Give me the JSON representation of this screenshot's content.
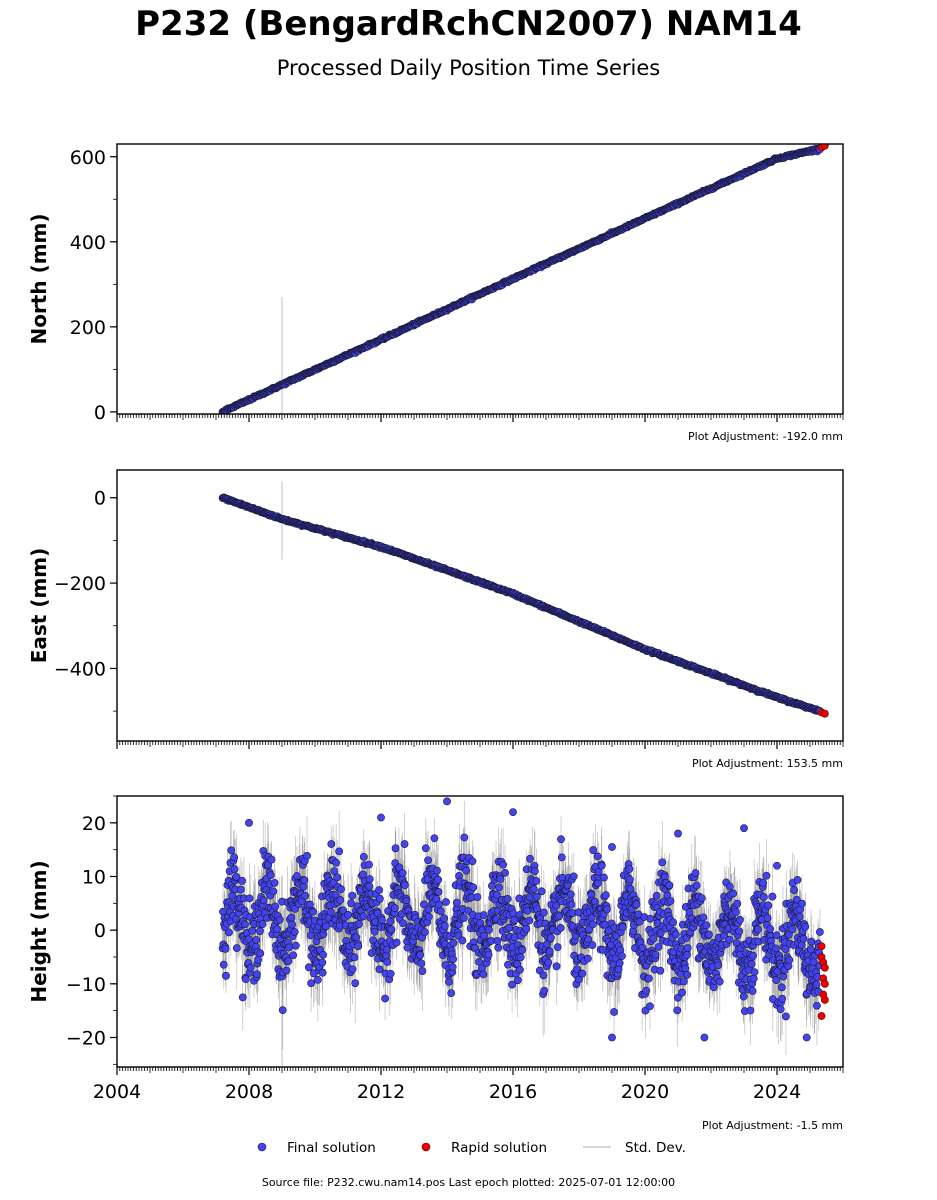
{
  "title": "P232 (BengardRchCN2007) NAM14",
  "subtitle": "Processed Daily Position Time Series",
  "source_text": "Source file: P232.cwu.nam14.pos  Last epoch plotted: 2025-07-01 12:00:00",
  "legend": [
    {
      "label": "Final solution",
      "color": "#4444ee"
    },
    {
      "label": "Rapid solution",
      "color": "#ee0000"
    },
    {
      "label": "Std. Dev.",
      "color": "#cccccc"
    }
  ],
  "colors": {
    "final": "#4444ee",
    "rapid": "#ee0000",
    "stddev": "#cccccc",
    "edge": "#1a1a3a"
  },
  "chart_data": [
    {
      "type": "scatter",
      "ylabel": "North (mm)",
      "adjustment": "Plot Adjustment: -192.0 mm",
      "xlim": [
        2004,
        2026
      ],
      "ylim": [
        -5,
        630
      ],
      "yticks": [
        0,
        200,
        400,
        600
      ],
      "ytick_labels": [
        "0",
        "200",
        "400",
        "600"
      ],
      "show_xticklabels": false,
      "series": [
        {
          "name": "Final solution",
          "x": [
            2007.2,
            2009.0,
            2012.0,
            2016.0,
            2020.0,
            2024.0,
            2025.3
          ],
          "y": [
            0,
            64,
            170,
            313,
            455,
            596,
            619
          ]
        },
        {
          "name": "Rapid solution",
          "x": [
            2025.35,
            2025.45
          ],
          "y": [
            622,
            626
          ]
        }
      ],
      "outliers": [
        {
          "x": 2009.0,
          "y_low": -5,
          "y_high": 270
        }
      ],
      "band": 2
    },
    {
      "type": "scatter",
      "ylabel": "East (mm)",
      "adjustment": "Plot Adjustment: 153.5 mm",
      "xlim": [
        2004,
        2026
      ],
      "ylim": [
        -570,
        65
      ],
      "yticks": [
        0,
        -200,
        -400
      ],
      "ytick_labels": [
        "0",
        "−200",
        "−400"
      ],
      "show_xticklabels": false,
      "series": [
        {
          "name": "Final solution",
          "x": [
            2007.2,
            2009.0,
            2012.0,
            2016.0,
            2020.0,
            2024.0,
            2025.3
          ],
          "y": [
            0,
            -50,
            -115,
            -225,
            -355,
            -468,
            -500
          ]
        },
        {
          "name": "Rapid solution",
          "x": [
            2025.35,
            2025.45
          ],
          "y": [
            -503,
            -506
          ]
        }
      ],
      "outliers": [
        {
          "x": 2009.0,
          "y_low": -145,
          "y_high": 38
        }
      ],
      "band": 2
    },
    {
      "type": "scatter",
      "ylabel": "Height (mm)",
      "adjustment": "Plot Adjustment: -1.5 mm",
      "xlim": [
        2004,
        2026
      ],
      "ylim": [
        -25.5,
        25
      ],
      "yticks": [
        -20,
        -10,
        0,
        10,
        20
      ],
      "ytick_labels": [
        "−20",
        "−10",
        "0",
        "10",
        "20"
      ],
      "xticks": [
        2004,
        2008,
        2012,
        2016,
        2020,
        2024
      ],
      "xtick_labels": [
        "2004",
        "2008",
        "2012",
        "2016",
        "2020",
        "2024"
      ],
      "show_xticklabels": true,
      "series": [
        {
          "name": "Final solution",
          "x_start": 2007.2,
          "x_end": 2025.3,
          "y_mean": 2,
          "seasonal_amplitude": 6,
          "noise": 5,
          "trend_end": -6
        },
        {
          "name": "Rapid solution",
          "x": [
            2025.35,
            2025.35,
            2025.4,
            2025.4,
            2025.45,
            2025.45,
            2025.35,
            2025.4,
            2025.45
          ],
          "y": [
            -3,
            -5,
            -6,
            -9,
            -10,
            -13,
            -16,
            -12,
            -7
          ]
        }
      ],
      "highlights": [
        {
          "x": 2008.0,
          "y": 20
        },
        {
          "x": 2012.0,
          "y": 21
        },
        {
          "x": 2014.0,
          "y": 24
        },
        {
          "x": 2016.0,
          "y": 22
        },
        {
          "x": 2019.0,
          "y": 15.5
        },
        {
          "x": 2019.0,
          "y": -20
        },
        {
          "x": 2021.0,
          "y": 18
        },
        {
          "x": 2021.8,
          "y": -20
        },
        {
          "x": 2023.0,
          "y": 19
        },
        {
          "x": 2024.0,
          "y": 12
        },
        {
          "x": 2024.9,
          "y": -20
        }
      ],
      "outliers": [
        {
          "x": 2009.0,
          "y_low": -25.5,
          "y_high": 10
        }
      ]
    }
  ]
}
